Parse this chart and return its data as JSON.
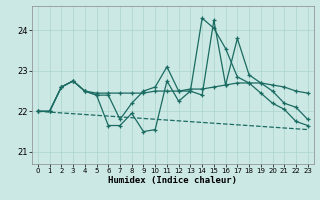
{
  "xlabel": "Humidex (Indice chaleur)",
  "background_color": "#cce8e4",
  "grid_color": "#aad4ce",
  "line_color": "#1a6b62",
  "xlim": [
    -0.5,
    23.5
  ],
  "ylim": [
    20.7,
    24.6
  ],
  "yticks": [
    21,
    22,
    23,
    24
  ],
  "xticks": [
    0,
    1,
    2,
    3,
    4,
    5,
    6,
    7,
    8,
    9,
    10,
    11,
    12,
    13,
    14,
    15,
    16,
    17,
    18,
    19,
    20,
    21,
    22,
    23
  ],
  "s1x": [
    0,
    1,
    2,
    3,
    4,
    5,
    6,
    7,
    8,
    9,
    10,
    11,
    12,
    13,
    14,
    15,
    16,
    17,
    18,
    19,
    20,
    21,
    22,
    23
  ],
  "s1y": [
    22.0,
    22.0,
    22.6,
    22.75,
    22.5,
    22.4,
    22.4,
    21.8,
    22.2,
    22.5,
    22.6,
    23.1,
    22.5,
    22.5,
    22.4,
    24.25,
    22.65,
    23.8,
    22.9,
    22.7,
    22.5,
    22.2,
    22.1,
    21.8
  ],
  "s2x": [
    0,
    1,
    2,
    3,
    4,
    5,
    6,
    7,
    8,
    9,
    10,
    11,
    12,
    13,
    14,
    15,
    16,
    17,
    18,
    19,
    20,
    21,
    22,
    23
  ],
  "s2y": [
    22.0,
    22.0,
    22.6,
    22.75,
    22.5,
    22.4,
    21.65,
    21.65,
    21.95,
    21.5,
    21.55,
    22.75,
    22.25,
    22.5,
    24.3,
    24.05,
    23.55,
    22.85,
    22.7,
    22.45,
    22.2,
    22.05,
    21.75,
    21.65
  ],
  "s3x": [
    0,
    1,
    2,
    3,
    4,
    5,
    6,
    7,
    8,
    9,
    10,
    11,
    12,
    13,
    14,
    15,
    16,
    17,
    18,
    19,
    20,
    21,
    22,
    23
  ],
  "s3y": [
    22.0,
    22.0,
    22.6,
    22.75,
    22.5,
    22.45,
    22.45,
    22.45,
    22.45,
    22.45,
    22.5,
    22.5,
    22.5,
    22.55,
    22.55,
    22.6,
    22.65,
    22.7,
    22.7,
    22.7,
    22.65,
    22.6,
    22.5,
    22.45
  ],
  "s4x": [
    0,
    23
  ],
  "s4y": [
    22.0,
    21.55
  ]
}
